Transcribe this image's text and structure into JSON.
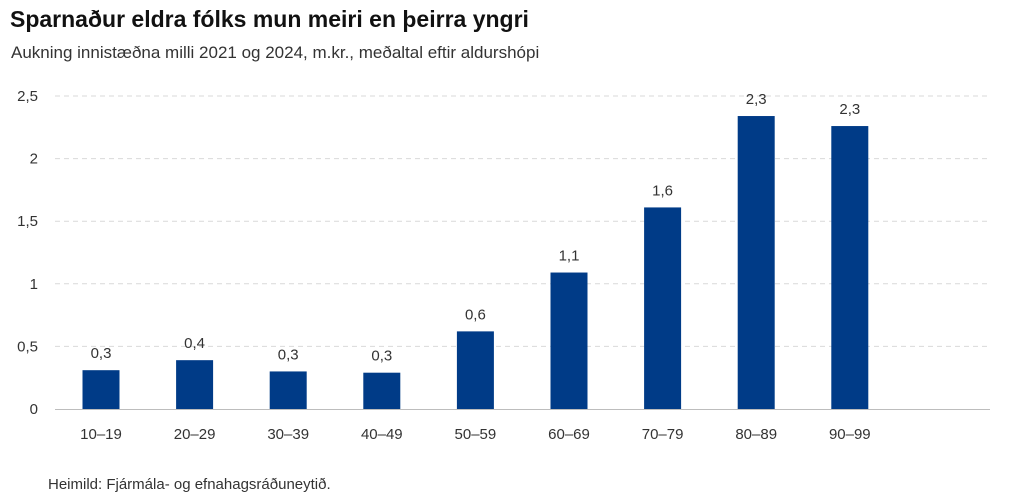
{
  "chart_data": {
    "type": "bar",
    "title": "Sparnaður eldra fólks mun meiri en þeirra yngri",
    "subtitle": "Aukning innistæðna milli 2021 og 2024, m.kr., meðaltal eftir aldurshópi",
    "source": "Heimild: Fjármála- og efnahagsráðuneytið.",
    "categories": [
      "10–19",
      "20–29",
      "30–39",
      "40–49",
      "50–59",
      "60–69",
      "70–79",
      "80–89",
      "90–99"
    ],
    "values": [
      0.31,
      0.39,
      0.3,
      0.29,
      0.62,
      1.09,
      1.61,
      2.34,
      2.26
    ],
    "data_labels": [
      "0,3",
      "0,4",
      "0,3",
      "0,3",
      "0,6",
      "1,1",
      "1,6",
      "2,3",
      "2,3"
    ],
    "yticks": [
      0,
      0.5,
      1,
      1.5,
      2,
      2.5
    ],
    "ytick_labels": [
      "0",
      "0,5",
      "1",
      "1,5",
      "2",
      "2,5"
    ],
    "ylim": [
      0,
      2.5
    ],
    "grid": true,
    "bar_color": "#003b87",
    "grid_color": "#d9d9d9"
  }
}
